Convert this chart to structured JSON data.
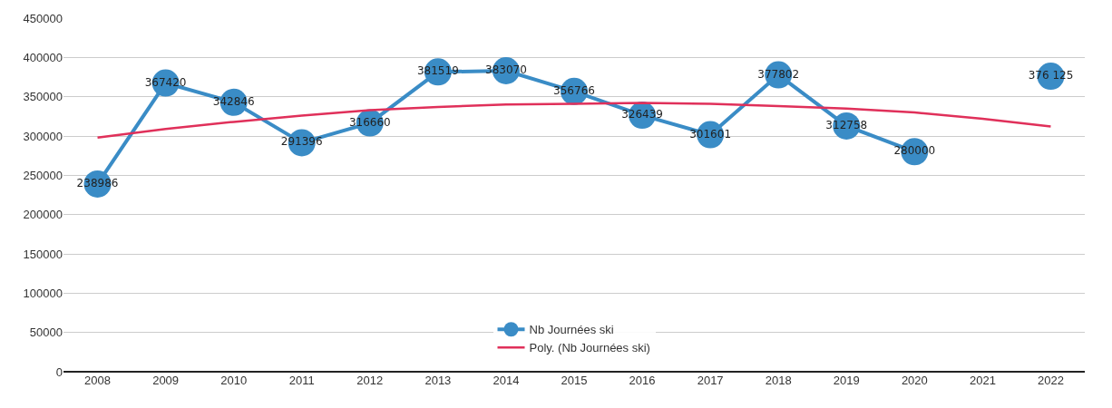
{
  "chart_data": {
    "type": "line",
    "categories": [
      "2008",
      "2009",
      "2010",
      "2011",
      "2012",
      "2013",
      "2014",
      "2015",
      "2016",
      "2017",
      "2018",
      "2019",
      "2020",
      "2021",
      "2022"
    ],
    "series": [
      {
        "name": "Nb Journées ski",
        "color": "#3a8cc6",
        "marker": "circle",
        "values": [
          238986,
          367420,
          342846,
          291396,
          316660,
          381519,
          383070,
          356766,
          326439,
          301601,
          377802,
          312758,
          280000,
          null,
          376125
        ],
        "value_labels": [
          "238986",
          "367420",
          "342846",
          "291396",
          "316660",
          "381519",
          "383070",
          "356766",
          "326439",
          "301601",
          "377802",
          "312758",
          "280000",
          null,
          "376 125"
        ]
      },
      {
        "name": "Poly. (Nb Journées ski)",
        "color": "#e0305a",
        "marker": "none",
        "values": [
          298000,
          309000,
          318000,
          326000,
          333000,
          337000,
          340000,
          341000,
          342000,
          341000,
          338000,
          335000,
          330000,
          322000,
          312000
        ]
      }
    ],
    "ylim": [
      0,
      450000
    ],
    "yticks": [
      0,
      50000,
      100000,
      150000,
      200000,
      250000,
      300000,
      350000,
      400000,
      450000
    ],
    "grid": "y",
    "legend": "bottom"
  }
}
